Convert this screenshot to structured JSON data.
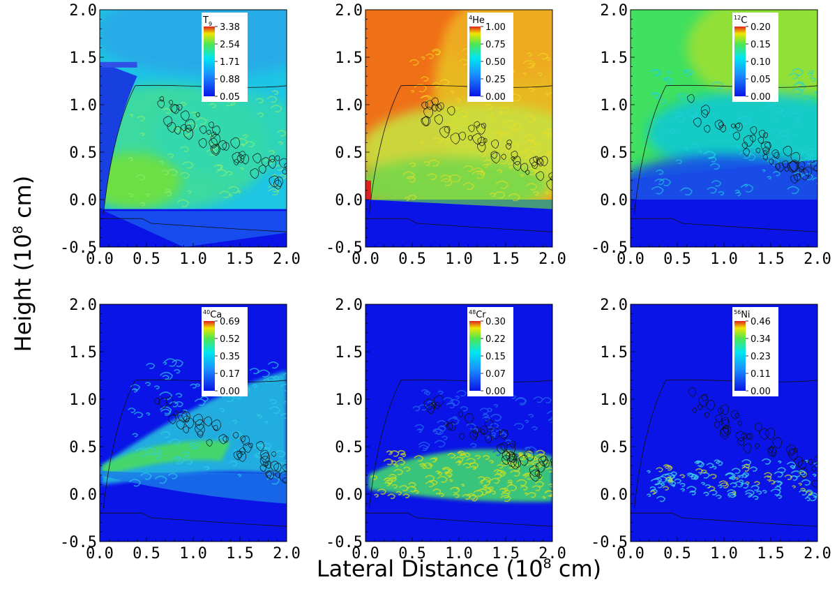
{
  "chart_data": {
    "type": "heatmap",
    "xlabel": {
      "pre": "Lateral Distance (10",
      "sup": "8",
      "post": " cm)"
    },
    "ylabel": {
      "pre": "Height (10",
      "sup": "8",
      "post": " cm)"
    },
    "xlim": [
      0.0,
      2.0
    ],
    "ylim": [
      -0.5,
      2.0
    ],
    "xticks": [
      "0.0",
      "0.5",
      "1.0",
      "1.5",
      "2.0"
    ],
    "yticks": [
      "-0.5",
      "0.0",
      "0.5",
      "1.0",
      "1.5",
      "2.0"
    ],
    "colors": {
      "low": "#0a14e6",
      "cyan": "#00e6f0",
      "green": "#50e650",
      "yellow": "#f0e600",
      "orange": "#f06a10",
      "red": "#e02020",
      "contour": "#101010"
    },
    "panels": [
      {
        "id": "T9",
        "prefix": "",
        "name": "T",
        "sub": "9",
        "ticks": [
          "3.38",
          "2.54",
          "1.71",
          "0.88",
          "0.05"
        ]
      },
      {
        "id": "He4",
        "prefix": "4",
        "name": "He",
        "sub": "",
        "ticks": [
          "1.00",
          "0.75",
          "0.50",
          "0.25",
          "0.00"
        ]
      },
      {
        "id": "C12",
        "prefix": "12",
        "name": "C",
        "sub": "",
        "ticks": [
          "0.20",
          "0.15",
          "0.10",
          "0.05",
          "0.00"
        ]
      },
      {
        "id": "Ca40",
        "prefix": "40",
        "name": "Ca",
        "sub": "",
        "ticks": [
          "0.69",
          "0.52",
          "0.35",
          "0.17",
          "0.00"
        ]
      },
      {
        "id": "Cr48",
        "prefix": "48",
        "name": "Cr",
        "sub": "",
        "ticks": [
          "0.30",
          "0.22",
          "0.15",
          "0.07",
          "0.00"
        ]
      },
      {
        "id": "Ni56",
        "prefix": "56",
        "name": "Ni",
        "sub": "",
        "ticks": [
          "0.46",
          "0.34",
          "0.23",
          "0.11",
          "0.00"
        ]
      }
    ]
  }
}
